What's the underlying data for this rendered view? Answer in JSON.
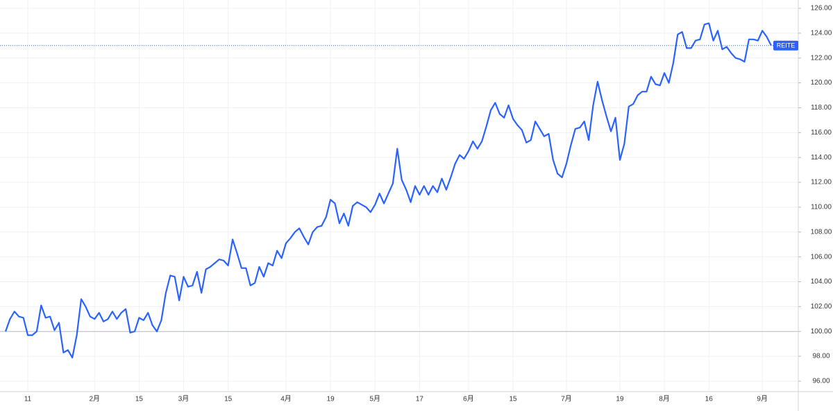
{
  "chart_data": {
    "type": "line",
    "categories": [
      null,
      null,
      null,
      null,
      null,
      "11",
      null,
      null,
      null,
      null,
      null,
      null,
      null,
      null,
      null,
      null,
      null,
      null,
      null,
      null,
      "2月",
      null,
      null,
      null,
      null,
      null,
      null,
      null,
      null,
      null,
      "15",
      null,
      null,
      null,
      null,
      null,
      null,
      null,
      null,
      null,
      "3月",
      null,
      null,
      null,
      null,
      null,
      null,
      null,
      null,
      null,
      "15",
      null,
      null,
      null,
      null,
      null,
      null,
      null,
      null,
      null,
      null,
      null,
      null,
      "4月",
      null,
      null,
      null,
      null,
      null,
      null,
      null,
      null,
      null,
      "19",
      null,
      null,
      null,
      null,
      null,
      null,
      null,
      null,
      null,
      "5月",
      null,
      null,
      null,
      null,
      null,
      null,
      null,
      null,
      null,
      "17",
      null,
      null,
      null,
      null,
      null,
      null,
      null,
      null,
      null,
      null,
      "6月",
      null,
      null,
      null,
      null,
      null,
      null,
      null,
      null,
      null,
      "15",
      null,
      null,
      null,
      null,
      null,
      null,
      null,
      null,
      null,
      null,
      null,
      "7月",
      null,
      null,
      null,
      null,
      null,
      null,
      null,
      null,
      null,
      null,
      null,
      "19",
      null,
      null,
      null,
      null,
      null,
      null,
      null,
      null,
      null,
      "8月",
      null,
      null,
      null,
      null,
      null,
      null,
      null,
      null,
      null,
      "16",
      null,
      null,
      null,
      null,
      null,
      null,
      null,
      null,
      null,
      null,
      null,
      "9月",
      null,
      null
    ],
    "series": [
      {
        "name": "REITE",
        "color": "#2962ff",
        "values": [
          100.0,
          101.0,
          101.6,
          101.2,
          101.1,
          99.7,
          99.7,
          100.0,
          102.1,
          101.1,
          101.2,
          100.1,
          100.7,
          98.3,
          98.5,
          97.9,
          99.7,
          102.6,
          102.0,
          101.2,
          101.0,
          101.5,
          100.8,
          101.0,
          101.6,
          101.0,
          101.5,
          101.8,
          99.9,
          100.0,
          101.1,
          100.9,
          101.5,
          100.5,
          100.0,
          100.9,
          103.1,
          104.5,
          104.4,
          102.5,
          104.4,
          103.6,
          103.7,
          104.8,
          103.1,
          105.0,
          105.2,
          105.5,
          105.8,
          105.7,
          105.3,
          107.4,
          106.3,
          105.1,
          105.1,
          103.7,
          103.9,
          105.2,
          104.4,
          105.5,
          105.3,
          106.5,
          105.9,
          107.1,
          107.5,
          108.0,
          108.3,
          107.6,
          107.0,
          108.0,
          108.4,
          108.5,
          109.2,
          110.6,
          110.3,
          108.7,
          109.5,
          108.5,
          110.1,
          110.4,
          110.2,
          110.0,
          109.6,
          110.2,
          111.1,
          110.3,
          111.1,
          111.9,
          114.7,
          112.2,
          111.4,
          110.4,
          111.7,
          111.0,
          111.7,
          111.0,
          111.7,
          111.2,
          112.3,
          111.4,
          112.4,
          113.5,
          114.2,
          113.9,
          114.5,
          115.3,
          114.7,
          115.3,
          116.5,
          117.8,
          118.4,
          117.5,
          117.2,
          118.2,
          117.1,
          116.6,
          116.2,
          115.2,
          115.4,
          116.9,
          116.3,
          115.7,
          115.9,
          113.8,
          112.7,
          112.4,
          113.5,
          115.0,
          116.3,
          116.4,
          116.9,
          115.4,
          118.2,
          120.1,
          118.6,
          117.3,
          116.1,
          117.2,
          113.8,
          115.1,
          118.1,
          118.3,
          119.0,
          119.3,
          119.3,
          120.5,
          119.9,
          119.8,
          120.8,
          120.0,
          121.6,
          123.9,
          124.1,
          122.8,
          122.8,
          123.4,
          123.5,
          124.7,
          124.8,
          123.4,
          124.2,
          122.7,
          122.9,
          122.4,
          122.0,
          121.9,
          121.7,
          123.5,
          123.5,
          123.4,
          124.2,
          123.7,
          123.0
        ]
      }
    ],
    "ylim": [
      95.16,
      126.67
    ],
    "yticks": [
      {
        "value": 96,
        "label": "96.00"
      },
      {
        "value": 98,
        "label": "98.00"
      },
      {
        "value": 100,
        "label": "100.00"
      },
      {
        "value": 102,
        "label": "102.00"
      },
      {
        "value": 104,
        "label": "104.00"
      },
      {
        "value": 106,
        "label": "106.00"
      },
      {
        "value": 108,
        "label": "108.00"
      },
      {
        "value": 110,
        "label": "110.00"
      },
      {
        "value": 112,
        "label": "112.00"
      },
      {
        "value": 114,
        "label": "114.00"
      },
      {
        "value": 116,
        "label": "116.00"
      },
      {
        "value": 118,
        "label": "118.00"
      },
      {
        "value": 120,
        "label": "120.00"
      },
      {
        "value": 122,
        "label": "122.00"
      },
      {
        "value": 124,
        "label": "124.00"
      },
      {
        "value": 126,
        "label": "126.00"
      }
    ],
    "baseline": 100,
    "grid": true,
    "axis_side": "right"
  }
}
